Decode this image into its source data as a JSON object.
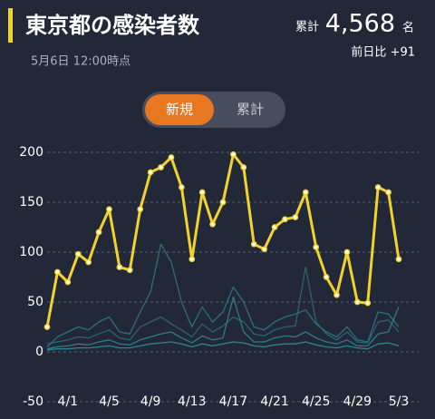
{
  "header": {
    "title": "東京都の感染者数",
    "timestamp": "5月6日 12:00時点",
    "total_label": "累計",
    "total_value": "4,568",
    "total_unit": "名",
    "change": "前日比 +91"
  },
  "toggle": [
    "新規",
    "累計"
  ],
  "chart_data": {
    "type": "line",
    "categories": [
      null,
      null,
      "4/1",
      null,
      null,
      null,
      "4/5",
      null,
      null,
      null,
      "4/9",
      null,
      null,
      null,
      "4/13",
      null,
      null,
      null,
      "4/17",
      null,
      null,
      null,
      "4/21",
      null,
      null,
      null,
      "4/25",
      null,
      null,
      null,
      "4/29",
      null,
      null,
      null,
      "5/3"
    ],
    "series": [
      {
        "color": "#2b7d8c",
        "values": [
          5,
          15,
          20,
          25,
          22,
          30,
          35,
          20,
          18,
          40,
          60,
          108,
          90,
          50,
          25,
          45,
          30,
          40,
          65,
          50,
          25,
          22,
          30,
          35,
          38,
          42,
          28,
          20,
          15,
          25,
          12,
          10,
          40,
          38,
          25
        ]
      },
      {
        "color": "#2a6f7e",
        "values": [
          8,
          10,
          12,
          15,
          14,
          18,
          22,
          14,
          12,
          25,
          30,
          35,
          28,
          22,
          15,
          28,
          20,
          26,
          35,
          30,
          18,
          16,
          22,
          25,
          26,
          85,
          30,
          18,
          12,
          20,
          10,
          9,
          30,
          32,
          20
        ]
      },
      {
        "color": "#2f8a96",
        "values": [
          3,
          5,
          6,
          8,
          7,
          10,
          12,
          8,
          7,
          12,
          15,
          18,
          20,
          14,
          9,
          16,
          12,
          14,
          55,
          20,
          10,
          10,
          14,
          16,
          15,
          20,
          14,
          10,
          8,
          12,
          6,
          6,
          18,
          20,
          45
        ]
      },
      {
        "color": "#2d95a0",
        "values": [
          2,
          3,
          3,
          4,
          4,
          5,
          6,
          4,
          4,
          6,
          8,
          9,
          10,
          8,
          5,
          8,
          6,
          8,
          10,
          9,
          6,
          5,
          7,
          8,
          8,
          10,
          7,
          5,
          4,
          6,
          4,
          3,
          8,
          9,
          6
        ]
      },
      {
        "color": "#f3d22b",
        "values": [
          25,
          80,
          70,
          98,
          90,
          120,
          143,
          85,
          82,
          143,
          180,
          185,
          195,
          165,
          93,
          160,
          128,
          150,
          198,
          185,
          108,
          103,
          125,
          133,
          135,
          160,
          105,
          75,
          57,
          100,
          50,
          49,
          165,
          160,
          93
        ]
      }
    ],
    "ylim": [
      -50,
      210
    ],
    "yticks": [
      -50,
      0,
      50,
      100,
      150,
      200
    ],
    "grid": true
  }
}
